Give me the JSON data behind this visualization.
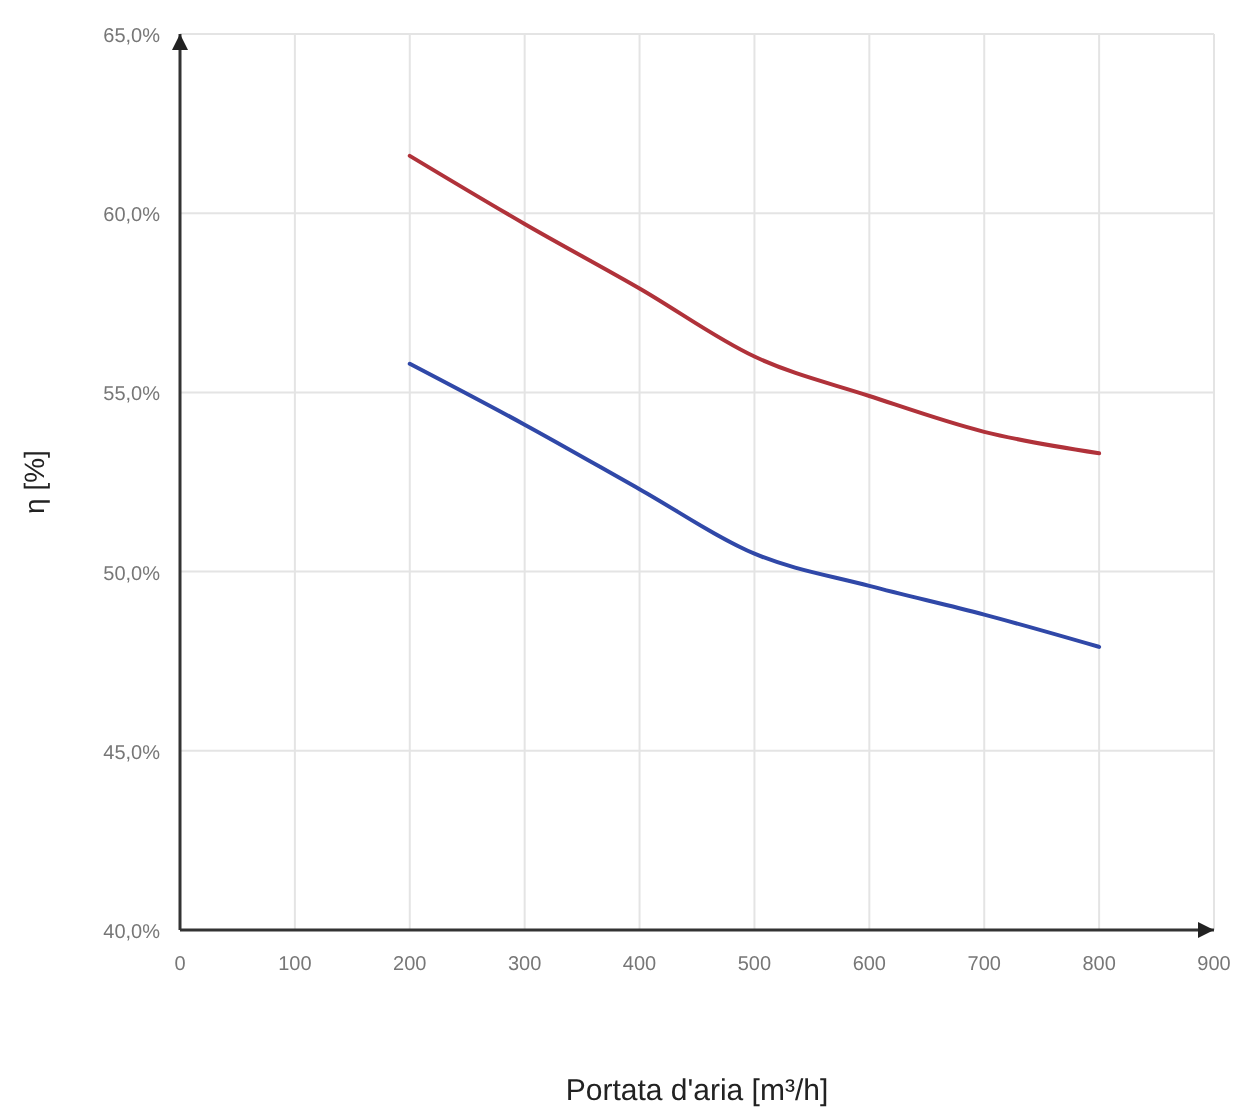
{
  "chart_data": {
    "type": "line",
    "xlabel": "Portata d'aria [m³/h]",
    "ylabel": "η [%]",
    "x": [
      200,
      300,
      400,
      500,
      600,
      700,
      800
    ],
    "series": [
      {
        "color": "#b0323a",
        "values": [
          61.6,
          59.7,
          57.9,
          56.0,
          54.9,
          53.9,
          53.3
        ]
      },
      {
        "color": "#3048a8",
        "values": [
          55.8,
          54.1,
          52.3,
          50.5,
          49.6,
          48.8,
          47.9
        ]
      }
    ],
    "xlim": [
      0,
      900
    ],
    "xticks": [
      0,
      100,
      200,
      300,
      400,
      500,
      600,
      700,
      800,
      900
    ],
    "ylim": [
      40,
      65
    ],
    "yticks": [
      {
        "value": 40,
        "label": "40,0%"
      },
      {
        "value": 45,
        "label": "45,0%"
      },
      {
        "value": 50,
        "label": "50,0%"
      },
      {
        "value": 55,
        "label": "55,0%"
      },
      {
        "value": 60,
        "label": "60,0%"
      },
      {
        "value": 65,
        "label": "65,0%"
      }
    ],
    "grid": true,
    "marker": "none",
    "line_style": "solid"
  }
}
